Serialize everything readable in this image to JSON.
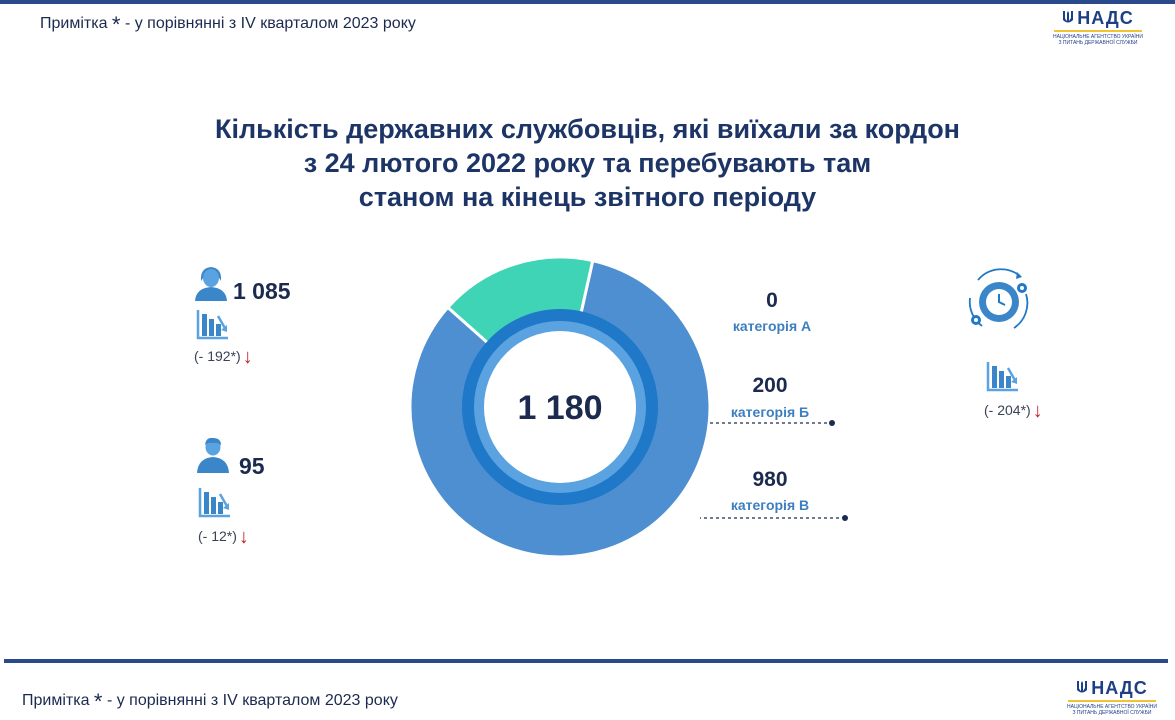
{
  "header": {
    "note_prefix": "Примітка",
    "note_star": "*",
    "note_text": "- у порівнянні з IV кварталом 2023 року",
    "logo_text": "НАДС",
    "logo_subtitle_1": "НАЦІОНАЛЬНЕ АГЕНТСТВО УКРАЇНИ",
    "logo_subtitle_2": "З ПИТАНЬ ДЕРЖАВНОЇ СЛУЖБИ"
  },
  "footer": {
    "note_prefix": "Примітка",
    "note_star": "*",
    "note_text": "- у порівнянні з IV кварталом 2023 року",
    "logo_text": "НАДС",
    "logo_subtitle_1": "НАЦІОНАЛЬНЕ АГЕНТСТВО УКРАЇНИ",
    "logo_subtitle_2": "З ПИТАНЬ ДЕРЖАВНОЇ СЛУЖБИ"
  },
  "women": {
    "value": "1 085",
    "change": "(- 192*)"
  },
  "men": {
    "value": "95",
    "change": "(- 12*)"
  },
  "right_panel": {
    "change": "(- 204*)"
  },
  "colors": {
    "cat_b": "#3fd4b5",
    "cat_v": "#4e8fd2",
    "inner_ring": "#1f78c8",
    "inner_ring_light": "#5aa3e0",
    "navy": "#1b2a4e",
    "red_arrow": "#c0252c"
  },
  "chart_data": {
    "type": "pie",
    "variant": "donut",
    "title": "Кількість державних службовців, які виїхали за кордон з 24 лютого 2022 року та перебувають там станом на кінець звітного періоду",
    "title_lines": [
      "Кількість державних службовців, які виїхали за кордон",
      "з 24 лютого 2022 року та перебувають там",
      "станом на кінець звітного періоду"
    ],
    "total": "1 180",
    "categories": [
      "категорія А",
      "категорія Б",
      "категорія В"
    ],
    "values": [
      0,
      200,
      980
    ],
    "value_labels": [
      "0",
      "200",
      "980"
    ]
  }
}
